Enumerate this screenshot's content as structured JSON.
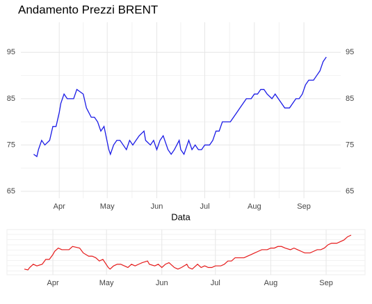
{
  "chart_data": {
    "type": "line",
    "title": "Andamento Prezzi BRENT",
    "x_label": "Data",
    "x": [
      0,
      2,
      3,
      5,
      7,
      10,
      12,
      14,
      16,
      17,
      19,
      21,
      23,
      25,
      27,
      29,
      31,
      33,
      36,
      38,
      40,
      42,
      44,
      47,
      48,
      50,
      52,
      54,
      56,
      58,
      60,
      62,
      64,
      66,
      69,
      70,
      73,
      75,
      77,
      79,
      81,
      83,
      84,
      86,
      88,
      91,
      92,
      94,
      97,
      99,
      101,
      103,
      105,
      107,
      110,
      112,
      114,
      116,
      118,
      120,
      123,
      125,
      127,
      129,
      131,
      133,
      136,
      138,
      140,
      142,
      144,
      146,
      149,
      151,
      153,
      155,
      157,
      160,
      162,
      164,
      166,
      168,
      170,
      172,
      175,
      177,
      179,
      181,
      183
    ],
    "series": [
      {
        "name": "BRENT",
        "color": "#1a1ae6",
        "navigator_color": "#e61a1a",
        "values": [
          73,
          72.5,
          74,
          76,
          75,
          76,
          79,
          79,
          82,
          84,
          86,
          85,
          85,
          85,
          87,
          86.5,
          86,
          83,
          81,
          81,
          80,
          78,
          79,
          74,
          73,
          75,
          76,
          76,
          75,
          74,
          76,
          75,
          76,
          77,
          78,
          76,
          75,
          76,
          74,
          76,
          77,
          75,
          74,
          73,
          74,
          76,
          74,
          73,
          76,
          74,
          75,
          74,
          74,
          75,
          75,
          76,
          78,
          78,
          80,
          80,
          80,
          81,
          82,
          83,
          84,
          85,
          85,
          86,
          86,
          87,
          87,
          86,
          85,
          86,
          85,
          84,
          83,
          83,
          84,
          85,
          85,
          86,
          88,
          89,
          89,
          90,
          91,
          93,
          94
        ]
      }
    ],
    "xlim": [
      -8,
      192
    ],
    "xticks": [
      {
        "value": 16,
        "label": "Apr"
      },
      {
        "value": 46,
        "label": "May"
      },
      {
        "value": 77,
        "label": "Jun"
      },
      {
        "value": 107,
        "label": "Jul"
      },
      {
        "value": 138,
        "label": "Aug"
      },
      {
        "value": 169,
        "label": "Sep"
      }
    ],
    "ylim": [
      63.5,
      101.5
    ],
    "yticks": [
      65,
      75,
      85,
      95
    ],
    "grid": true
  }
}
